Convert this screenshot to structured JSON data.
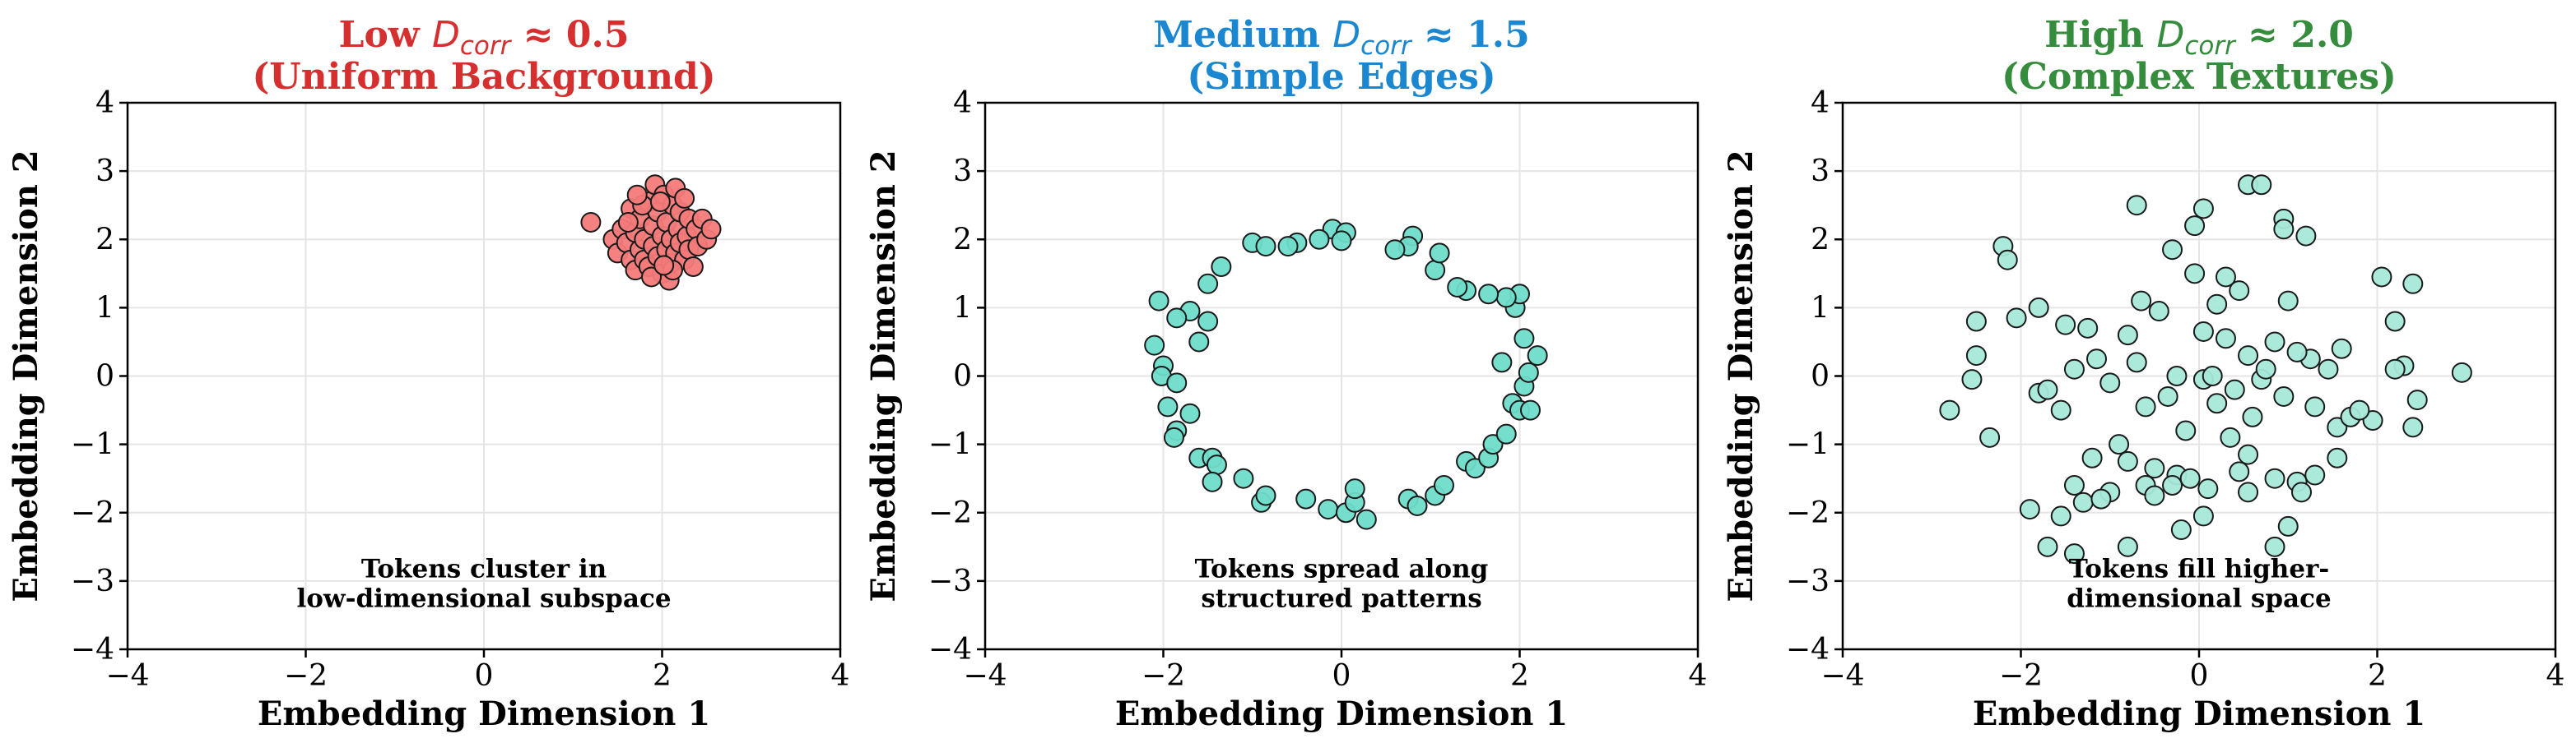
{
  "chart_data": [
    {
      "type": "scatter",
      "title_prefix": "Low",
      "title_symbol": "D",
      "title_subscript": "corr",
      "title_value": "≈ 0.5",
      "subtitle": "(Uniform Background)",
      "title_color": "#d62f2f",
      "xlabel": "Embedding Dimension 1",
      "ylabel": "Embedding Dimension 2",
      "xlim": [
        -4,
        4
      ],
      "ylim": [
        -4,
        4
      ],
      "xticks": [
        "−4",
        "−2",
        "0",
        "2",
        "4"
      ],
      "yticks": [
        "−4",
        "−3",
        "−2",
        "−1",
        "0",
        "1",
        "2",
        "3",
        "4"
      ],
      "grid": true,
      "annotation": [
        "Tokens cluster in",
        "low-dimensional subspace"
      ],
      "point_color": "#f47a7a",
      "points": [
        [
          1.2,
          2.25
        ],
        [
          1.45,
          2.0
        ],
        [
          1.5,
          1.8
        ],
        [
          1.55,
          2.15
        ],
        [
          1.6,
          1.95
        ],
        [
          1.65,
          1.7
        ],
        [
          1.65,
          2.45
        ],
        [
          1.7,
          2.1
        ],
        [
          1.7,
          1.55
        ],
        [
          1.75,
          1.85
        ],
        [
          1.75,
          2.3
        ],
        [
          1.8,
          2.0
        ],
        [
          1.8,
          1.7
        ],
        [
          1.85,
          2.55
        ],
        [
          1.85,
          1.6
        ],
        [
          1.9,
          2.2
        ],
        [
          1.9,
          1.9
        ],
        [
          1.92,
          2.8
        ],
        [
          1.95,
          1.75
        ],
        [
          1.95,
          2.4
        ],
        [
          2.0,
          2.05
        ],
        [
          2.0,
          1.5
        ],
        [
          2.02,
          2.65
        ],
        [
          2.05,
          1.85
        ],
        [
          2.05,
          2.25
        ],
        [
          2.08,
          1.4
        ],
        [
          2.1,
          2.0
        ],
        [
          2.1,
          1.65
        ],
        [
          2.12,
          2.5
        ],
        [
          2.15,
          2.75
        ],
        [
          2.15,
          1.8
        ],
        [
          2.18,
          2.15
        ],
        [
          2.2,
          1.95
        ],
        [
          2.2,
          2.4
        ],
        [
          2.25,
          1.7
        ],
        [
          2.25,
          2.6
        ],
        [
          2.28,
          2.05
        ],
        [
          2.3,
          1.85
        ],
        [
          2.3,
          2.3
        ],
        [
          2.35,
          1.6
        ],
        [
          2.38,
          2.15
        ],
        [
          2.4,
          1.9
        ],
        [
          2.45,
          2.3
        ],
        [
          2.5,
          2.0
        ],
        [
          2.55,
          2.15
        ],
        [
          1.62,
          2.25
        ],
        [
          1.78,
          2.5
        ],
        [
          1.98,
          2.55
        ],
        [
          2.12,
          1.55
        ],
        [
          1.88,
          1.45
        ],
        [
          2.02,
          1.62
        ],
        [
          1.72,
          2.65
        ]
      ]
    },
    {
      "type": "scatter",
      "title_prefix": "Medium",
      "title_symbol": "D",
      "title_subscript": "corr",
      "title_value": "≈ 1.5",
      "subtitle": "(Simple Edges)",
      "title_color": "#1a87d0",
      "xlabel": "Embedding Dimension 1",
      "ylabel": "Embedding Dimension 2",
      "xlim": [
        -4,
        4
      ],
      "ylim": [
        -4,
        4
      ],
      "xticks": [
        "−4",
        "−2",
        "0",
        "2",
        "4"
      ],
      "yticks": [
        "−4",
        "−3",
        "−2",
        "−1",
        "0",
        "1",
        "2",
        "3",
        "4"
      ],
      "grid": true,
      "annotation": [
        "Tokens spread along",
        "structured patterns"
      ],
      "point_color": "#6fdcc9",
      "points": [
        [
          -0.1,
          2.15
        ],
        [
          0.05,
          2.1
        ],
        [
          -0.25,
          2.0
        ],
        [
          0.0,
          1.98
        ],
        [
          -0.5,
          1.95
        ],
        [
          -0.6,
          1.9
        ],
        [
          -1.0,
          1.95
        ],
        [
          -1.35,
          1.6
        ],
        [
          -1.5,
          1.35
        ],
        [
          -1.7,
          0.95
        ],
        [
          -2.05,
          1.1
        ],
        [
          -1.85,
          0.85
        ],
        [
          -1.6,
          0.5
        ],
        [
          -1.5,
          0.8
        ],
        [
          -2.1,
          0.45
        ],
        [
          -2.0,
          0.15
        ],
        [
          -2.02,
          0.0
        ],
        [
          -1.85,
          -0.1
        ],
        [
          -1.95,
          -0.45
        ],
        [
          -1.85,
          -0.8
        ],
        [
          -1.88,
          -0.9
        ],
        [
          -1.7,
          -0.55
        ],
        [
          -1.6,
          -1.2
        ],
        [
          -1.45,
          -1.2
        ],
        [
          -1.4,
          -1.3
        ],
        [
          -1.45,
          -1.55
        ],
        [
          -1.1,
          -1.5
        ],
        [
          -0.9,
          -1.85
        ],
        [
          -0.85,
          -1.75
        ],
        [
          -0.4,
          -1.8
        ],
        [
          -0.15,
          -1.95
        ],
        [
          0.05,
          -2.0
        ],
        [
          0.15,
          -1.85
        ],
        [
          0.15,
          -1.65
        ],
        [
          0.28,
          -2.1
        ],
        [
          0.75,
          -1.8
        ],
        [
          0.85,
          -1.9
        ],
        [
          1.05,
          -1.75
        ],
        [
          1.15,
          -1.6
        ],
        [
          1.4,
          -1.25
        ],
        [
          1.5,
          -1.35
        ],
        [
          1.65,
          -1.2
        ],
        [
          1.7,
          -1.0
        ],
        [
          1.85,
          -0.85
        ],
        [
          1.92,
          -0.4
        ],
        [
          2.0,
          -0.5
        ],
        [
          2.12,
          -0.5
        ],
        [
          2.05,
          -0.15
        ],
        [
          2.1,
          0.05
        ],
        [
          2.2,
          0.3
        ],
        [
          2.05,
          0.55
        ],
        [
          1.8,
          0.2
        ],
        [
          1.95,
          1.0
        ],
        [
          2.0,
          1.2
        ],
        [
          1.85,
          1.15
        ],
        [
          1.65,
          1.2
        ],
        [
          1.4,
          1.25
        ],
        [
          1.3,
          1.3
        ],
        [
          1.05,
          1.55
        ],
        [
          1.1,
          1.8
        ],
        [
          0.8,
          2.05
        ],
        [
          0.75,
          1.9
        ],
        [
          0.6,
          1.85
        ],
        [
          -0.85,
          1.9
        ]
      ]
    },
    {
      "type": "scatter",
      "title_prefix": "High",
      "title_symbol": "D",
      "title_subscript": "corr",
      "title_value": "≈ 2.0",
      "subtitle": "(Complex Textures)",
      "title_color": "#348c3c",
      "xlabel": "Embedding Dimension 1",
      "ylabel": "Embedding Dimension 2",
      "xlim": [
        -4,
        4
      ],
      "ylim": [
        -4,
        4
      ],
      "xticks": [
        "−4",
        "−2",
        "0",
        "2",
        "4"
      ],
      "yticks": [
        "−4",
        "−3",
        "−2",
        "−1",
        "0",
        "1",
        "2",
        "3",
        "4"
      ],
      "grid": true,
      "annotation": [
        "Tokens fill higher-",
        "dimensional space"
      ],
      "point_color": "#a6e8d9",
      "points": [
        [
          0.55,
          2.8
        ],
        [
          0.7,
          2.8
        ],
        [
          -0.7,
          2.5
        ],
        [
          0.05,
          2.45
        ],
        [
          0.95,
          2.3
        ],
        [
          0.95,
          2.15
        ],
        [
          1.2,
          2.05
        ],
        [
          -0.05,
          2.2
        ],
        [
          -2.2,
          1.9
        ],
        [
          -2.15,
          1.7
        ],
        [
          -0.3,
          1.85
        ],
        [
          -1.8,
          1.0
        ],
        [
          -2.05,
          0.85
        ],
        [
          -2.5,
          0.8
        ],
        [
          -0.65,
          1.1
        ],
        [
          -0.05,
          1.5
        ],
        [
          0.2,
          1.05
        ],
        [
          -0.45,
          0.95
        ],
        [
          0.3,
          0.55
        ],
        [
          0.05,
          0.65
        ],
        [
          1.0,
          1.1
        ],
        [
          -1.5,
          0.75
        ],
        [
          -1.25,
          0.7
        ],
        [
          1.6,
          0.4
        ],
        [
          2.05,
          1.45
        ],
        [
          2.4,
          1.35
        ],
        [
          2.2,
          0.8
        ],
        [
          0.85,
          0.5
        ],
        [
          0.55,
          0.3
        ],
        [
          -0.8,
          0.6
        ],
        [
          -1.15,
          0.25
        ],
        [
          -2.5,
          0.3
        ],
        [
          -2.55,
          -0.05
        ],
        [
          -1.8,
          -0.25
        ],
        [
          -1.7,
          -0.2
        ],
        [
          -2.8,
          -0.5
        ],
        [
          -2.35,
          -0.9
        ],
        [
          -1.55,
          -0.5
        ],
        [
          -1.0,
          -0.1
        ],
        [
          -0.7,
          0.2
        ],
        [
          -0.35,
          -0.3
        ],
        [
          -0.25,
          0.0
        ],
        [
          0.05,
          -0.05
        ],
        [
          0.2,
          -0.4
        ],
        [
          0.4,
          -0.2
        ],
        [
          0.6,
          -0.6
        ],
        [
          0.7,
          -0.05
        ],
        [
          0.95,
          -0.3
        ],
        [
          1.25,
          0.25
        ],
        [
          1.3,
          -0.45
        ],
        [
          1.55,
          -0.75
        ],
        [
          1.7,
          -0.6
        ],
        [
          2.3,
          0.15
        ],
        [
          2.2,
          0.1
        ],
        [
          2.95,
          0.05
        ],
        [
          2.45,
          -0.35
        ],
        [
          2.4,
          -0.75
        ],
        [
          1.95,
          -0.65
        ],
        [
          -1.2,
          -1.2
        ],
        [
          -0.8,
          -1.25
        ],
        [
          -0.5,
          -1.35
        ],
        [
          -0.25,
          -1.45
        ],
        [
          -1.4,
          -1.6
        ],
        [
          -1.3,
          -1.85
        ],
        [
          -1.0,
          -1.7
        ],
        [
          -0.6,
          -1.6
        ],
        [
          -0.1,
          -1.5
        ],
        [
          0.1,
          -1.65
        ],
        [
          0.45,
          -1.4
        ],
        [
          0.55,
          -1.15
        ],
        [
          0.85,
          -1.5
        ],
        [
          1.1,
          -1.55
        ],
        [
          1.15,
          -1.7
        ],
        [
          1.3,
          -1.45
        ],
        [
          -1.9,
          -1.95
        ],
        [
          -1.55,
          -2.05
        ],
        [
          -1.1,
          -1.8
        ],
        [
          -0.3,
          -1.6
        ],
        [
          0.55,
          -1.7
        ],
        [
          1.55,
          -1.2
        ],
        [
          -1.7,
          -2.5
        ],
        [
          -1.4,
          -2.6
        ],
        [
          -0.8,
          -2.5
        ],
        [
          -0.2,
          -2.25
        ],
        [
          0.05,
          -2.05
        ],
        [
          0.85,
          -2.5
        ],
        [
          1.0,
          -2.2
        ],
        [
          -0.5,
          -1.75
        ],
        [
          0.35,
          -0.9
        ],
        [
          -0.9,
          -1.0
        ],
        [
          1.45,
          0.1
        ],
        [
          0.15,
          0.0
        ],
        [
          -0.6,
          -0.45
        ],
        [
          0.75,
          0.1
        ],
        [
          0.45,
          1.25
        ],
        [
          -1.4,
          0.1
        ],
        [
          1.8,
          -0.5
        ],
        [
          -0.15,
          -0.8
        ],
        [
          1.1,
          0.35
        ],
        [
          0.3,
          1.45
        ]
      ]
    }
  ]
}
